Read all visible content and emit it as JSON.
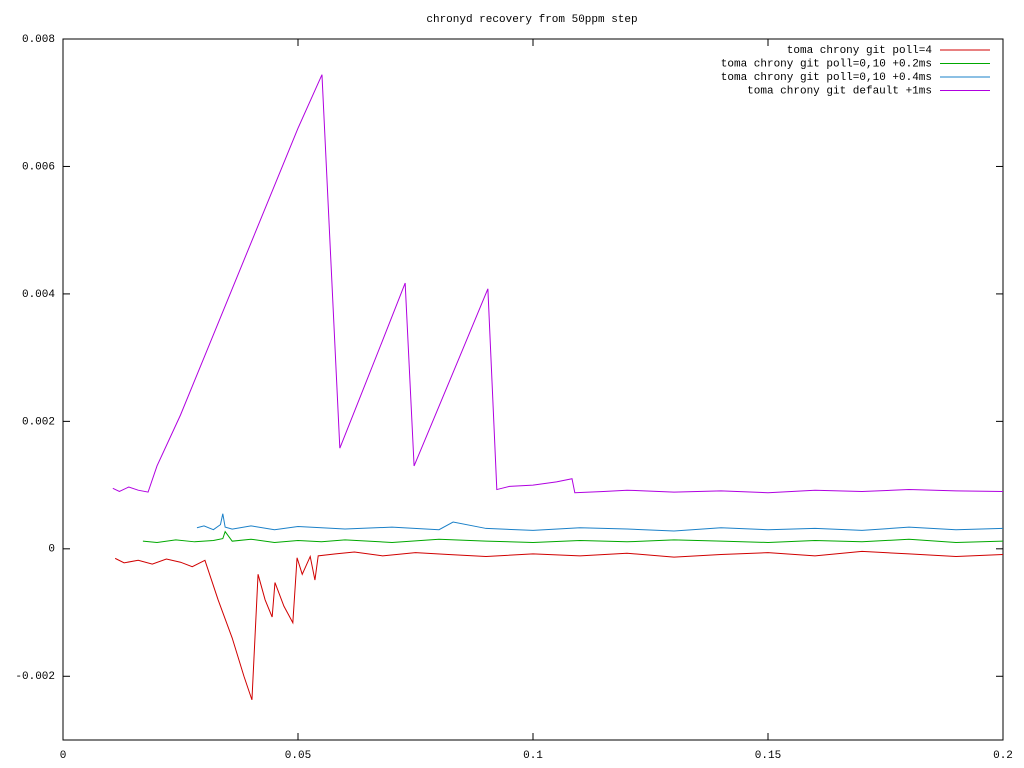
{
  "chart_data": {
    "type": "line",
    "title": "chronyd recovery from 50ppm step",
    "xlim": [
      0,
      0.2
    ],
    "xticks": [
      0,
      0.05,
      0.1,
      0.15,
      0.2
    ],
    "ylim": [
      -0.003,
      0.008
    ],
    "yticks": [
      -0.002,
      0,
      0.002,
      0.004,
      0.006,
      0.008
    ],
    "grid": false,
    "legend": "top-right",
    "series": [
      {
        "name": "toma chrony git poll=4",
        "color": "#d00000",
        "x": [
          0.0111,
          0.013,
          0.016,
          0.019,
          0.022,
          0.025,
          0.0275,
          0.0302,
          0.033,
          0.036,
          0.0385,
          0.0402,
          0.0415,
          0.043,
          0.0445,
          0.0451,
          0.047,
          0.0489,
          0.0498,
          0.0509,
          0.0526,
          0.0536,
          0.0543,
          0.058,
          0.062,
          0.068,
          0.075,
          0.082,
          0.09,
          0.1,
          0.11,
          0.12,
          0.13,
          0.14,
          0.15,
          0.16,
          0.17,
          0.18,
          0.19,
          0.2
        ],
        "values": [
          -0.00015,
          -0.00022,
          -0.00018,
          -0.00024,
          -0.00016,
          -0.00021,
          -0.00028,
          -0.00018,
          -0.0008,
          -0.0014,
          -0.002,
          -0.00237,
          -0.0004,
          -0.0008,
          -0.00107,
          -0.00053,
          -0.0009,
          -0.00116,
          -0.00014,
          -0.0004,
          -0.00012,
          -0.00049,
          -0.00011,
          -8e-05,
          -5e-05,
          -0.00011,
          -6e-05,
          -9e-05,
          -0.00012,
          -8e-05,
          -0.00011,
          -7e-05,
          -0.00013,
          -9e-05,
          -6e-05,
          -0.00011,
          -4e-05,
          -8e-05,
          -0.00012,
          -9e-05
        ]
      },
      {
        "name": "toma chrony git poll=0,10 +0.2ms",
        "color": "#00a800",
        "x": [
          0.017,
          0.02,
          0.024,
          0.028,
          0.032,
          0.034,
          0.0345,
          0.036,
          0.04,
          0.045,
          0.05,
          0.055,
          0.06,
          0.07,
          0.08,
          0.09,
          0.1,
          0.11,
          0.12,
          0.13,
          0.14,
          0.15,
          0.16,
          0.17,
          0.18,
          0.19,
          0.2
        ],
        "values": [
          0.00012,
          0.0001,
          0.00014,
          0.00011,
          0.00013,
          0.00016,
          0.00027,
          0.00012,
          0.00015,
          0.0001,
          0.00013,
          0.00011,
          0.00014,
          0.0001,
          0.00015,
          0.00012,
          0.0001,
          0.00013,
          0.00011,
          0.00014,
          0.00012,
          0.0001,
          0.00013,
          0.00011,
          0.00015,
          0.0001,
          0.00012
        ]
      },
      {
        "name": "toma chrony git poll=0,10 +0.4ms",
        "color": "#1a80c8",
        "x": [
          0.0285,
          0.03,
          0.032,
          0.0335,
          0.034,
          0.0345,
          0.036,
          0.04,
          0.045,
          0.05,
          0.06,
          0.07,
          0.08,
          0.083,
          0.09,
          0.1,
          0.11,
          0.12,
          0.13,
          0.14,
          0.15,
          0.16,
          0.17,
          0.18,
          0.19,
          0.2
        ],
        "values": [
          0.00033,
          0.00036,
          0.0003,
          0.00038,
          0.00055,
          0.00034,
          0.00031,
          0.00036,
          0.0003,
          0.00035,
          0.00031,
          0.00034,
          0.0003,
          0.00042,
          0.00032,
          0.00029,
          0.00033,
          0.00031,
          0.00028,
          0.00033,
          0.0003,
          0.00032,
          0.00029,
          0.00034,
          0.0003,
          0.00032
        ]
      },
      {
        "name": "toma chrony git default +1ms",
        "color": "#b000e0",
        "x": [
          0.0106,
          0.012,
          0.014,
          0.016,
          0.0181,
          0.02,
          0.025,
          0.03,
          0.035,
          0.04,
          0.045,
          0.05,
          0.0551,
          0.0589,
          0.063,
          0.068,
          0.0728,
          0.0747,
          0.079,
          0.085,
          0.0904,
          0.0923,
          0.095,
          0.1,
          0.105,
          0.1083,
          0.1089,
          0.115,
          0.12,
          0.13,
          0.14,
          0.15,
          0.16,
          0.17,
          0.18,
          0.19,
          0.2
        ],
        "values": [
          0.00095,
          0.0009,
          0.00097,
          0.00092,
          0.00089,
          0.0013,
          0.0021,
          0.003,
          0.0039,
          0.0048,
          0.0057,
          0.0066,
          0.00744,
          0.00158,
          0.00234,
          0.00327,
          0.00417,
          0.0013,
          0.00206,
          0.00312,
          0.00408,
          0.00093,
          0.00098,
          0.001,
          0.00105,
          0.0011,
          0.00088,
          0.0009,
          0.00092,
          0.00089,
          0.00091,
          0.00088,
          0.00092,
          0.0009,
          0.00093,
          0.00091,
          0.0009
        ]
      }
    ]
  }
}
